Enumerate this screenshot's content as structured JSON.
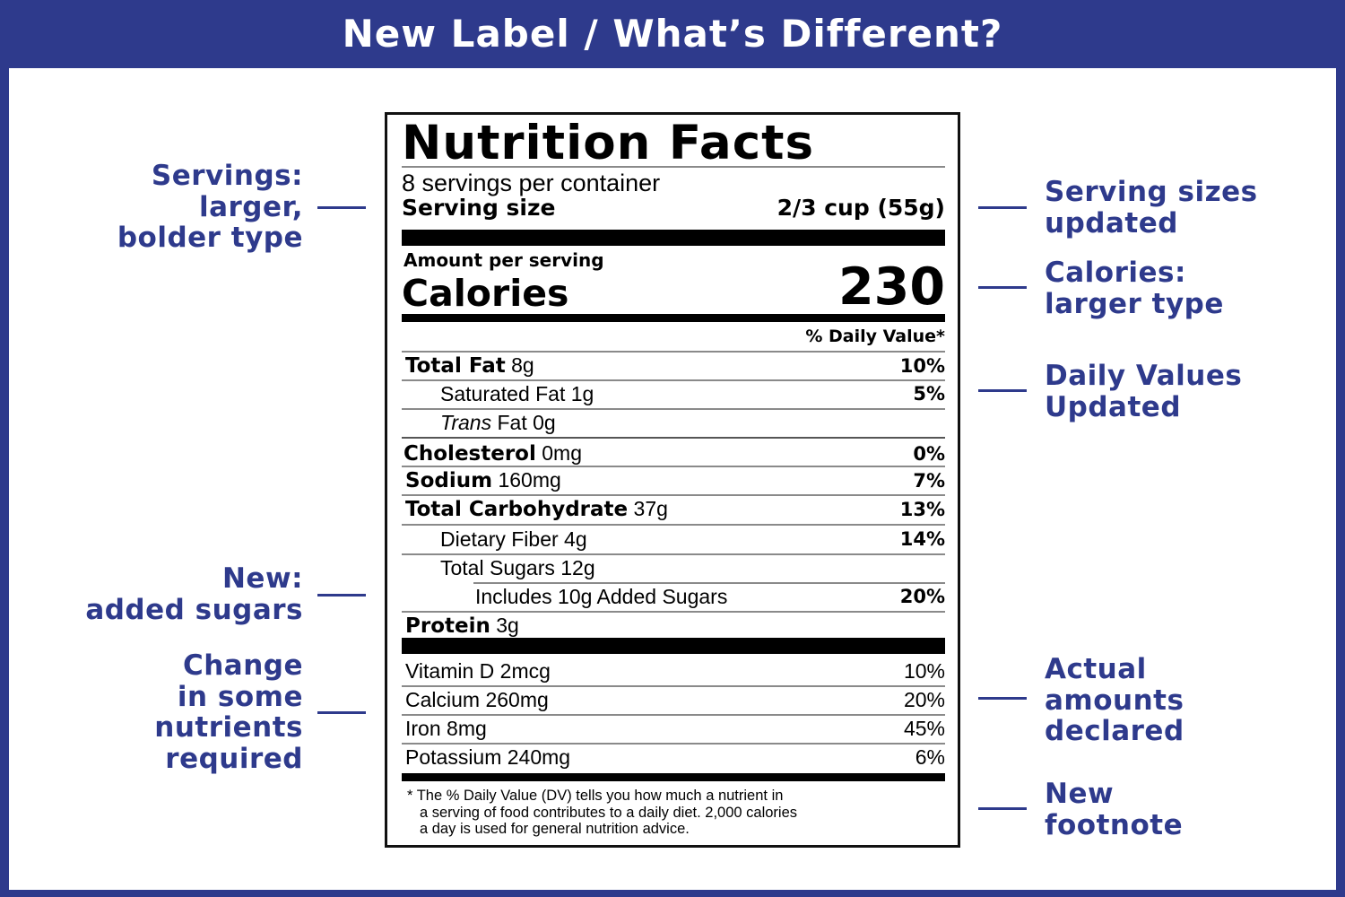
{
  "header": {
    "title": "New Label / What’s Different?"
  },
  "colors": {
    "brand_blue": "#2e3a8c",
    "background": "#ffffff",
    "label_black": "#000000"
  },
  "callouts_left": [
    {
      "id": "servings",
      "lines": [
        "Servings:",
        "larger,",
        "bolder type"
      ]
    },
    {
      "id": "added-sugars",
      "lines": [
        "New:",
        "added sugars"
      ]
    },
    {
      "id": "nutrients",
      "lines": [
        "Change",
        "in some",
        "nutrients",
        "required"
      ]
    }
  ],
  "callouts_right": [
    {
      "id": "serving-sizes",
      "lines": [
        "Serving sizes",
        "updated"
      ]
    },
    {
      "id": "calories",
      "lines": [
        "Calories:",
        "larger type"
      ]
    },
    {
      "id": "daily-values",
      "lines": [
        "Daily Values",
        "Updated"
      ]
    },
    {
      "id": "actual-amounts",
      "lines": [
        "Actual",
        "amounts",
        "declared"
      ]
    },
    {
      "id": "footnote",
      "lines": [
        "New",
        "footnote"
      ]
    }
  ],
  "label": {
    "title": "Nutrition Facts",
    "servings_per_container": "8 servings per container",
    "serving_size_label": "Serving size",
    "serving_size_value": "2/3 cup (55g)",
    "amount_per_serving": "Amount per serving",
    "calories_label": "Calories",
    "calories_value": "230",
    "dv_header": "% Daily Value*",
    "nutrients": [
      {
        "name": "Total Fat",
        "amount": "8g",
        "dv": "10%"
      },
      {
        "name": "Saturated Fat",
        "amount": "1g",
        "dv": "5%"
      },
      {
        "name": "Trans",
        "name_rest": "Fat",
        "amount": "0g",
        "dv": ""
      },
      {
        "name": "Cholesterol",
        "amount": "0mg",
        "dv": "0%"
      },
      {
        "name": "Sodium",
        "amount": "160mg",
        "dv": "7%"
      },
      {
        "name": "Total Carbohydrate",
        "amount": "37g",
        "dv": "13%"
      },
      {
        "name": "Dietary Fiber",
        "amount": "4g",
        "dv": "14%"
      },
      {
        "name": "Total Sugars",
        "amount": "12g",
        "dv": ""
      },
      {
        "name": "Includes 10g Added Sugars",
        "amount": "",
        "dv": "20%"
      },
      {
        "name": "Protein",
        "amount": "3g",
        "dv": ""
      }
    ],
    "vitamins": [
      {
        "name": "Vitamin D 2mcg",
        "dv": "10%"
      },
      {
        "name": "Calcium 260mg",
        "dv": "20%"
      },
      {
        "name": "Iron 8mg",
        "dv": "45%"
      },
      {
        "name": "Potassium 240mg",
        "dv": "6%"
      }
    ],
    "footnote_lines": [
      "* The % Daily Value (DV) tells you how much a nutrient in",
      "a serving of food contributes to a daily diet. 2,000 calories",
      "a day is used for general nutrition advice."
    ]
  }
}
